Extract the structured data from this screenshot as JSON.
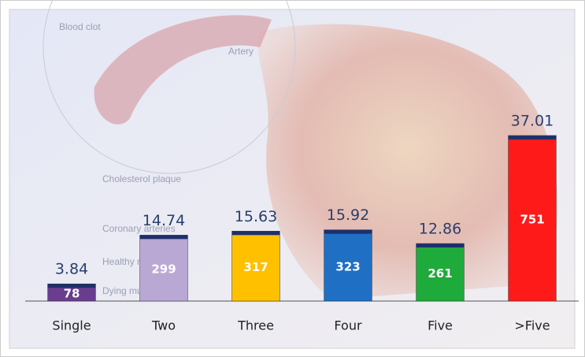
{
  "chart_data": {
    "type": "bar",
    "categories": [
      "Single",
      "Two",
      "Three",
      "Four",
      "Five",
      ">Five"
    ],
    "values": [
      3.84,
      14.74,
      15.63,
      15.92,
      12.86,
      37.01
    ],
    "counts": [
      78,
      299,
      317,
      323,
      261,
      751
    ],
    "colors": [
      "#6a3d8f",
      "#b9a8d4",
      "#ffc000",
      "#1f6fc5",
      "#1faa3c",
      "#ff1a1a"
    ],
    "cap_color": "#1f2f6b",
    "ylim": [
      0,
      40
    ],
    "background_labels": [
      "Blood clot",
      "Artery",
      "Cholesterol plaque",
      "Coronary arteries",
      "Healthy muscle",
      "Dying muscle"
    ]
  }
}
